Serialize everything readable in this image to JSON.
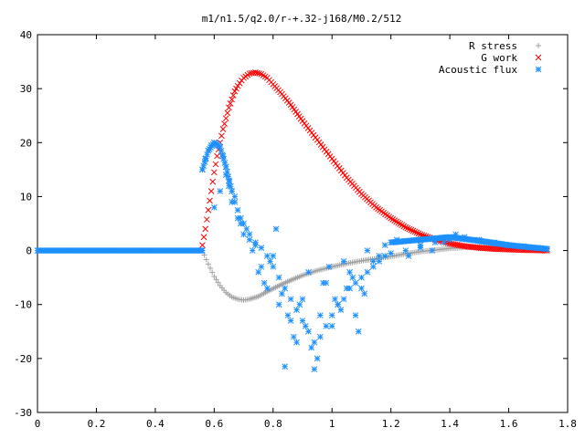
{
  "chart_data": {
    "type": "scatter",
    "title": "m1/n1.5/q2.0/r-+.32-j168/M0.2/512",
    "xlabel": "",
    "ylabel": "",
    "xlim": [
      0,
      1.8
    ],
    "ylim": [
      -30,
      40
    ],
    "x_ticks": [
      "0",
      "0.2",
      "0.4",
      "0.6",
      "0.8",
      "1",
      "1.2",
      "1.4",
      "1.6",
      "1.8"
    ],
    "y_ticks": [
      "40",
      "30",
      "20",
      "10",
      "0",
      "-10",
      "-20",
      "-30"
    ],
    "x_tick_values": [
      0,
      0.2,
      0.4,
      0.6,
      0.8,
      1.0,
      1.2,
      1.4,
      1.6,
      1.8
    ],
    "y_tick_values": [
      40,
      30,
      20,
      10,
      0,
      -10,
      -20,
      -30
    ],
    "grid": false,
    "legend_position": "top-right",
    "series": [
      {
        "name": "R stress",
        "marker": "+",
        "color": "#a0a0a0",
        "x": [
          0.56,
          0.58,
          0.6,
          0.62,
          0.64,
          0.66,
          0.68,
          0.7,
          0.72,
          0.75,
          0.78,
          0.82,
          0.86,
          0.9,
          0.95,
          1.0,
          1.05,
          1.1,
          1.15,
          1.2,
          1.25,
          1.3,
          1.35,
          1.4,
          1.45,
          1.5,
          1.55,
          1.6,
          1.65,
          1.7,
          1.73
        ],
        "y": [
          0,
          -2.5,
          -4.8,
          -6.5,
          -7.8,
          -8.6,
          -9.0,
          -9.2,
          -9.0,
          -8.5,
          -7.6,
          -6.5,
          -5.5,
          -4.6,
          -3.7,
          -3.0,
          -2.4,
          -1.9,
          -1.5,
          -1.1,
          -0.6,
          -0.2,
          0.1,
          0.4,
          0.6,
          0.7,
          0.7,
          0.6,
          0.5,
          0.3,
          0.2
        ]
      },
      {
        "name": "G work",
        "marker": "x",
        "color": "#ff0000",
        "x": [
          0.56,
          0.57,
          0.58,
          0.59,
          0.6,
          0.61,
          0.62,
          0.63,
          0.64,
          0.65,
          0.66,
          0.67,
          0.68,
          0.7,
          0.72,
          0.74,
          0.76,
          0.78,
          0.8,
          0.83,
          0.86,
          0.9,
          0.95,
          1.0,
          1.05,
          1.1,
          1.15,
          1.2,
          1.25,
          1.3,
          1.35,
          1.4,
          1.45,
          1.5,
          1.55,
          1.6,
          1.65,
          1.7,
          1.73
        ],
        "y": [
          1,
          4,
          7.5,
          11,
          14.5,
          17.5,
          20,
          22.5,
          24.5,
          26.5,
          28,
          29.5,
          30.5,
          32,
          32.8,
          33,
          32.7,
          32,
          30.8,
          29,
          27,
          24,
          20.5,
          17,
          13.5,
          10.5,
          8,
          6,
          4.3,
          3,
          2,
          1.3,
          0.8,
          0.5,
          0.3,
          0.2,
          0.1,
          0.05,
          0
        ]
      },
      {
        "name": "Acoustic flux",
        "marker": "*",
        "color": "#1e90ff",
        "x": [
          0.56,
          0.57,
          0.58,
          0.59,
          0.6,
          0.61,
          0.62,
          0.63,
          0.64,
          0.65,
          0.66,
          0.67,
          0.68,
          0.69,
          0.7,
          0.72,
          0.74,
          0.76,
          0.78,
          0.8,
          0.82,
          0.84,
          0.86,
          0.88,
          0.9,
          0.92,
          0.94,
          0.96,
          0.98,
          1.0,
          1.02,
          1.04,
          1.06,
          1.08,
          1.1,
          1.12,
          1.14,
          1.16,
          1.18,
          1.2,
          1.25,
          1.3,
          1.35,
          1.4,
          1.45,
          1.5,
          1.55,
          1.6,
          1.65,
          1.7,
          1.73,
          0.6,
          0.62,
          0.64,
          0.66,
          0.68,
          0.7,
          0.72,
          0.74,
          0.75,
          0.77,
          0.79,
          0.81,
          0.83,
          0.85,
          0.87,
          0.89,
          0.91,
          0.93,
          0.95,
          0.97,
          0.99,
          1.01,
          1.03,
          1.05,
          1.07,
          1.09,
          1.11,
          0.65,
          0.67,
          0.69,
          0.71,
          0.73,
          0.76,
          0.78,
          0.8,
          0.82,
          0.84,
          0.86,
          0.88,
          0.9,
          0.92,
          0.94,
          0.96,
          0.98,
          1.0,
          1.02,
          1.04,
          1.06,
          1.08,
          1.1,
          1.12,
          1.14,
          1.16,
          1.18,
          1.22,
          1.26,
          1.3,
          1.34,
          1.38,
          1.42
        ],
        "y": [
          15,
          17,
          18.5,
          19.5,
          20,
          19.8,
          19.2,
          17.5,
          15.5,
          13,
          11,
          9,
          7.5,
          6,
          5,
          3,
          1.5,
          0.5,
          -1,
          -3,
          -5,
          -7,
          -9,
          -11,
          -13,
          -15,
          -17,
          -16,
          -14,
          -12,
          -10,
          -9,
          -7,
          -6,
          -5,
          -4,
          -3,
          -2,
          -1,
          -0.5,
          0,
          0.5,
          1.5,
          2,
          2.5,
          2,
          1.5,
          1,
          0.8,
          0.5,
          0.3,
          8,
          11,
          14,
          9,
          6,
          3,
          2,
          1,
          -4,
          -6,
          -2,
          4,
          -8,
          -12,
          -16,
          -10,
          -14,
          -18,
          -20,
          -6,
          -3,
          -9,
          -11,
          -7,
          -5,
          -15,
          -8,
          12,
          10,
          5,
          4,
          0,
          -3,
          -7,
          -1,
          -10,
          -21.5,
          -13,
          -17,
          -9,
          -4,
          -22,
          -12,
          -6,
          -14,
          -10,
          -2,
          -4,
          -12,
          -7,
          0,
          -2,
          -1,
          1,
          2,
          -1,
          1,
          0,
          1.5,
          3
        ],
        "y_flat_left": [
          0,
          0.56
        ]
      }
    ]
  }
}
